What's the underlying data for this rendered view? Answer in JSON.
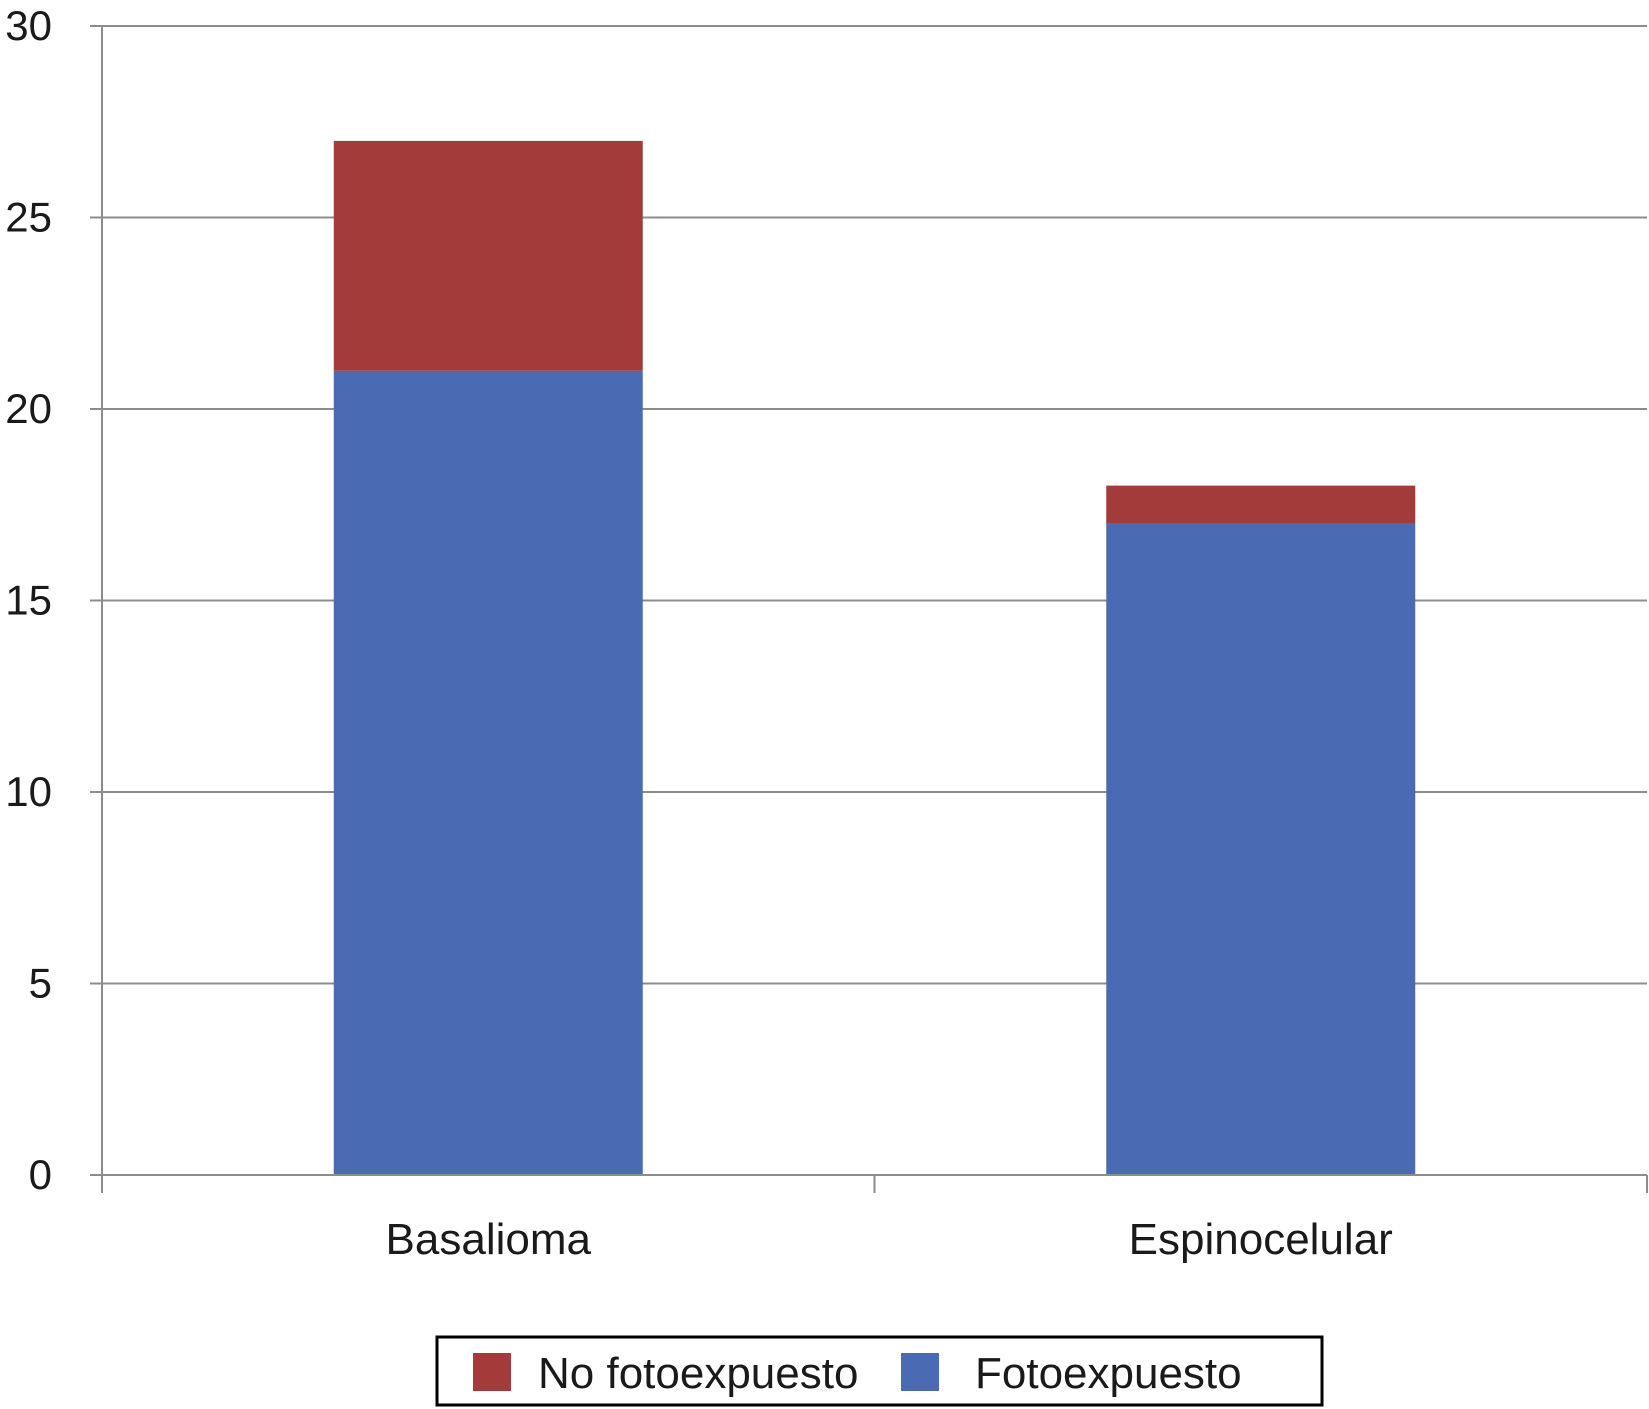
{
  "chart_data": {
    "type": "bar",
    "stacked": true,
    "categories": [
      "Basalioma",
      "Espinocelular"
    ],
    "series": [
      {
        "name": "Fotoexpuesto",
        "values": [
          21,
          17
        ],
        "color": "#4a6bb4"
      },
      {
        "name": "No fotoexpuesto",
        "values": [
          6,
          1
        ],
        "color": "#a33b3b"
      }
    ],
    "ylim": [
      0,
      30
    ],
    "yticks": [
      0,
      5,
      10,
      15,
      20,
      25,
      30
    ],
    "grid": true,
    "legend_position": "bottom",
    "legend_order": [
      "No fotoexpuesto",
      "Fotoexpuesto"
    ]
  }
}
